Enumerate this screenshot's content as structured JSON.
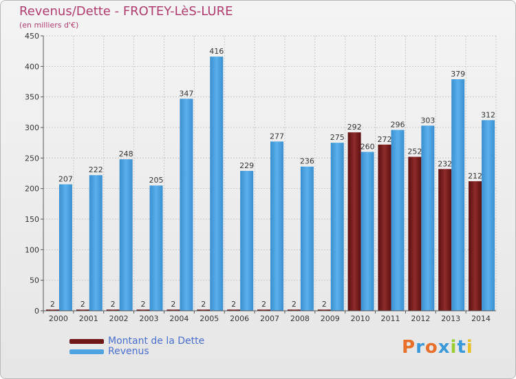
{
  "title": "Revenus/Dette - FROTEY-LèS-LURE",
  "subtitle": "(en milliers d'€)",
  "logo": {
    "text": "Proxiti"
  },
  "chart_data": {
    "type": "bar",
    "categories": [
      "2000",
      "2001",
      "2002",
      "2003",
      "2004",
      "2005",
      "2006",
      "2007",
      "2008",
      "2009",
      "2010",
      "2011",
      "2012",
      "2013",
      "2014"
    ],
    "series": [
      {
        "name": "Montant de la Dette",
        "color": "#7a1a1a",
        "values": [
          2,
          2,
          2,
          2,
          2,
          2,
          2,
          2,
          2,
          2,
          292,
          272,
          252,
          232,
          212
        ]
      },
      {
        "name": "Revenus",
        "color": "#4fa3e0",
        "values": [
          207,
          222,
          248,
          205,
          347,
          416,
          229,
          277,
          236,
          275,
          260,
          296,
          303,
          379,
          312
        ]
      }
    ],
    "ylim": [
      0,
      450
    ],
    "yticks": [
      0,
      50,
      100,
      150,
      200,
      250,
      300,
      350,
      400,
      450
    ],
    "grid": true,
    "legend_position": "bottom-left"
  }
}
